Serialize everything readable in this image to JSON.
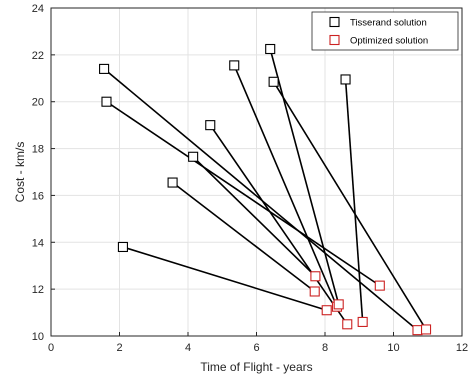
{
  "chart_data": {
    "type": "scatter",
    "title": "",
    "xlabel": "Time of Flight - years",
    "ylabel": "Cost - km/s",
    "xlim": [
      0,
      12
    ],
    "ylim": [
      10,
      24
    ],
    "xticks": [
      "0",
      "2",
      "4",
      "6",
      "8",
      "10",
      "12"
    ],
    "yticks": [
      "10",
      "12",
      "14",
      "16",
      "18",
      "20",
      "22",
      "24"
    ],
    "grid": true,
    "legend_position": "top-right",
    "colors": {
      "tisserand": "#000000",
      "optimized": "#cc2222",
      "connector": "#000000",
      "grid": "#e3e3e3"
    },
    "series": [
      {
        "name": "Tisserand solution",
        "marker": "square",
        "x": [
          1.55,
          1.62,
          2.1,
          3.55,
          4.15,
          4.65,
          5.35,
          6.4,
          6.5,
          8.6
        ],
        "y": [
          21.4,
          20.0,
          13.8,
          16.55,
          17.65,
          19.0,
          21.55,
          22.25,
          20.85,
          20.95
        ]
      },
      {
        "name": "Optimized solution",
        "marker": "square",
        "x": [
          10.7,
          9.6,
          8.05,
          7.7,
          7.72,
          8.65,
          8.35,
          8.4,
          10.95,
          9.1
        ],
        "y": [
          10.25,
          12.15,
          11.1,
          11.9,
          12.55,
          10.5,
          11.25,
          11.35,
          10.28,
          10.6
        ]
      }
    ]
  }
}
